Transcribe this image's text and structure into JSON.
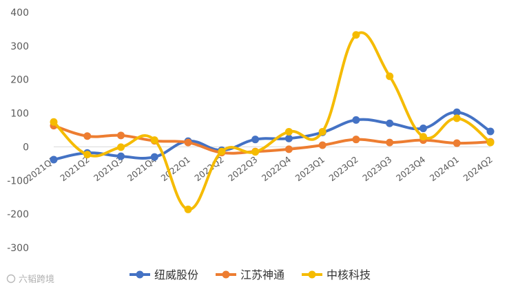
{
  "chart_data": {
    "type": "line",
    "categories": [
      "2021Q1",
      "2021Q2",
      "2021Q3",
      "2021Q4",
      "2022Q1",
      "2022Q2",
      "2022Q3",
      "2022Q4",
      "2023Q1",
      "2023Q2",
      "2023Q3",
      "2023Q4",
      "2024Q1",
      "2024Q2"
    ],
    "series": [
      {
        "name": "纽威股份",
        "color": "#4472C4",
        "values": [
          -38,
          -18,
          -28,
          -30,
          17,
          -10,
          22,
          25,
          43,
          80,
          70,
          55,
          103,
          46
        ]
      },
      {
        "name": "江苏神通",
        "color": "#ED7D31",
        "values": [
          63,
          32,
          34,
          18,
          13,
          -17,
          -14,
          -7,
          5,
          22,
          13,
          20,
          11,
          15
        ]
      },
      {
        "name": "中核科技",
        "color": "#F5BB00",
        "values": [
          74,
          -23,
          -1,
          20,
          -186,
          -14,
          -15,
          45,
          45,
          333,
          210,
          30,
          85,
          13
        ]
      }
    ],
    "ylim": [
      -300,
      400
    ],
    "yticks": [
      -300,
      -200,
      -100,
      0,
      100,
      200,
      300,
      400
    ],
    "grid": false,
    "legend": "bottom",
    "smooth": true,
    "markers": "circle"
  },
  "watermark": {
    "text": "六韬跨境"
  }
}
